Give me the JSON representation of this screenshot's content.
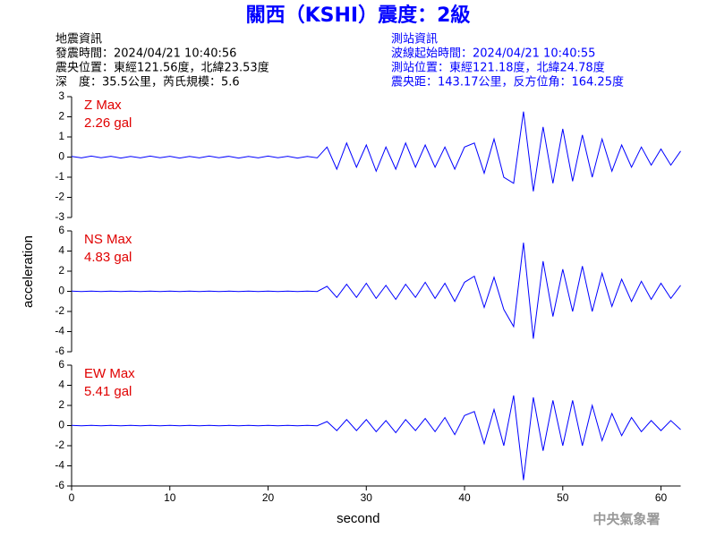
{
  "header": {
    "title": "關西（KSHI）震度：2級",
    "left": [
      "地震資訊",
      "發震時間：2024/04/21 10:40:56",
      "震央位置：東經121.56度，北緯23.53度",
      "深　度：35.5公里，芮氏規模：5.6"
    ],
    "right": [
      "測站資訊",
      "波線起始時間：2024/04/21 10:40:55",
      "測站位置：東經121.18度，北緯24.78度",
      "震央距：143.17公里，反方位角：164.25度"
    ],
    "footer": "中央氣象署"
  },
  "chart_data": [
    {
      "type": "line",
      "name": "Z Max",
      "annotation": "2.26 gal",
      "color": "#0000ff",
      "xlim": [
        0,
        62
      ],
      "ylim": [
        -3,
        3
      ],
      "yticks": [
        -3,
        -2,
        -1,
        0,
        1,
        2,
        3
      ],
      "x": [
        0,
        1,
        2,
        3,
        4,
        5,
        6,
        7,
        8,
        9,
        10,
        11,
        12,
        13,
        14,
        15,
        16,
        17,
        18,
        19,
        20,
        21,
        22,
        23,
        24,
        25,
        26,
        27,
        28,
        29,
        30,
        31,
        32,
        33,
        34,
        35,
        36,
        37,
        38,
        39,
        40,
        41,
        42,
        43,
        44,
        45,
        46,
        47,
        48,
        49,
        50,
        51,
        52,
        53,
        54,
        55,
        56,
        57,
        58,
        59,
        60,
        61,
        62
      ],
      "values": [
        0.03,
        -0.04,
        0.05,
        -0.03,
        0.04,
        -0.05,
        0.03,
        -0.04,
        0.05,
        -0.03,
        0.04,
        -0.05,
        0.03,
        -0.04,
        0.05,
        -0.03,
        0.04,
        -0.05,
        0.03,
        -0.04,
        0.05,
        -0.03,
        0.04,
        -0.05,
        0.03,
        -0.04,
        0.5,
        -0.6,
        0.7,
        -0.5,
        0.6,
        -0.7,
        0.5,
        -0.6,
        0.7,
        -0.5,
        0.6,
        -0.5,
        0.5,
        -0.6,
        0.5,
        0.7,
        -0.8,
        0.9,
        -1.0,
        -1.3,
        2.26,
        -1.7,
        1.5,
        -1.3,
        1.4,
        -1.2,
        1.1,
        -1.0,
        0.9,
        -0.7,
        0.6,
        -0.5,
        0.5,
        -0.4,
        0.4,
        -0.4,
        0.3
      ]
    },
    {
      "type": "line",
      "name": "NS Max",
      "annotation": "4.83 gal",
      "color": "#0000ff",
      "ylabel": "acceleration",
      "xlim": [
        0,
        62
      ],
      "ylim": [
        -6,
        6
      ],
      "yticks": [
        -6,
        -4,
        -2,
        0,
        2,
        4,
        6
      ],
      "x": [
        0,
        1,
        2,
        3,
        4,
        5,
        6,
        7,
        8,
        9,
        10,
        11,
        12,
        13,
        14,
        15,
        16,
        17,
        18,
        19,
        20,
        21,
        22,
        23,
        24,
        25,
        26,
        27,
        28,
        29,
        30,
        31,
        32,
        33,
        34,
        35,
        36,
        37,
        38,
        39,
        40,
        41,
        42,
        43,
        44,
        45,
        46,
        47,
        48,
        49,
        50,
        51,
        52,
        53,
        54,
        55,
        56,
        57,
        58,
        59,
        60,
        61,
        62
      ],
      "values": [
        0.02,
        -0.02,
        0.02,
        -0.02,
        0.02,
        -0.02,
        0.02,
        -0.02,
        0.02,
        -0.02,
        0.02,
        -0.02,
        0.02,
        -0.02,
        0.02,
        -0.02,
        0.02,
        -0.02,
        0.02,
        -0.02,
        0.02,
        -0.02,
        0.02,
        -0.02,
        0.02,
        -0.02,
        0.5,
        -0.6,
        0.7,
        -0.6,
        0.8,
        -0.7,
        0.6,
        -0.8,
        0.7,
        -0.6,
        0.9,
        -0.7,
        0.8,
        -1.0,
        0.9,
        1.5,
        -1.6,
        1.4,
        -1.8,
        -3.5,
        4.83,
        -4.7,
        3.0,
        -2.5,
        2.2,
        -2.0,
        2.5,
        -2.0,
        1.8,
        -1.5,
        1.2,
        -1.0,
        1.0,
        -0.8,
        0.8,
        -0.7,
        0.6
      ]
    },
    {
      "type": "line",
      "name": "EW Max",
      "annotation": "5.41 gal",
      "color": "#0000ff",
      "xlabel": "second",
      "xlim": [
        0,
        62
      ],
      "xticks": [
        0,
        10,
        20,
        30,
        40,
        50,
        60
      ],
      "ylim": [
        -6,
        6
      ],
      "yticks": [
        -6,
        -4,
        -2,
        0,
        2,
        4,
        6
      ],
      "x": [
        0,
        1,
        2,
        3,
        4,
        5,
        6,
        7,
        8,
        9,
        10,
        11,
        12,
        13,
        14,
        15,
        16,
        17,
        18,
        19,
        20,
        21,
        22,
        23,
        24,
        25,
        26,
        27,
        28,
        29,
        30,
        31,
        32,
        33,
        34,
        35,
        36,
        37,
        38,
        39,
        40,
        41,
        42,
        43,
        44,
        45,
        46,
        47,
        48,
        49,
        50,
        51,
        52,
        53,
        54,
        55,
        56,
        57,
        58,
        59,
        60,
        61,
        62
      ],
      "values": [
        0.02,
        -0.02,
        0.02,
        -0.02,
        0.02,
        -0.02,
        0.02,
        -0.02,
        0.02,
        -0.02,
        0.02,
        -0.02,
        0.02,
        -0.02,
        0.02,
        -0.02,
        0.02,
        -0.02,
        0.02,
        -0.02,
        0.02,
        -0.02,
        0.02,
        -0.02,
        0.02,
        -0.02,
        0.4,
        -0.5,
        0.6,
        -0.5,
        0.6,
        -0.6,
        0.5,
        -0.7,
        0.6,
        -0.5,
        0.7,
        -0.6,
        0.8,
        -0.9,
        1.0,
        1.4,
        -1.8,
        1.6,
        -2.0,
        3.0,
        -5.41,
        2.8,
        -2.5,
        2.5,
        -2.0,
        2.5,
        -2.0,
        2.0,
        -1.5,
        1.2,
        -1.0,
        0.8,
        -0.6,
        0.5,
        -0.5,
        0.5,
        -0.4
      ]
    }
  ]
}
